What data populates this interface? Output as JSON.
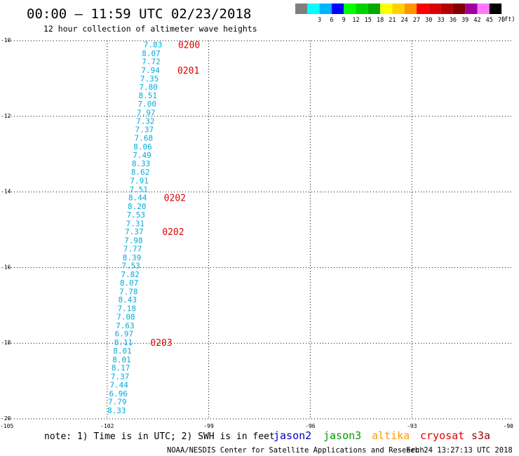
{
  "header": {
    "title": "00:00 – 11:59 UTC 02/23/2018",
    "subtitle": "12 hour collection of altimeter wave heights"
  },
  "scale": {
    "unit_label": "(ft)",
    "bins": [
      {
        "label": "",
        "color": "#7f7f7f"
      },
      {
        "label": "3",
        "color": "#00ffff"
      },
      {
        "label": "6",
        "color": "#00b4ff"
      },
      {
        "label": "9",
        "color": "#0000ff"
      },
      {
        "label": "12",
        "color": "#00ff00"
      },
      {
        "label": "15",
        "color": "#00d200"
      },
      {
        "label": "18",
        "color": "#00aa00"
      },
      {
        "label": "21",
        "color": "#ffff00"
      },
      {
        "label": "24",
        "color": "#ffd200"
      },
      {
        "label": "27",
        "color": "#ff9600"
      },
      {
        "label": "30",
        "color": "#ff0000"
      },
      {
        "label": "33",
        "color": "#dc0000"
      },
      {
        "label": "36",
        "color": "#b40000"
      },
      {
        "label": "39",
        "color": "#820000"
      },
      {
        "label": "42",
        "color": "#a000a0"
      },
      {
        "label": "45",
        "color": "#ff78ff"
      },
      {
        "label": "70",
        "color": "#000000"
      }
    ]
  },
  "footer": {
    "note": "note: 1) Time is in UTC; 2) SWH is in feet",
    "credit": "NOAA/NESDIS Center for Satellite Applications and Research",
    "timestamp": "Feb 24 13:27:13 UTC 2018",
    "satellites": [
      {
        "name": "jason2",
        "color": "#0000cc"
      },
      {
        "name": "jason3",
        "color": "#009900"
      },
      {
        "name": "altika",
        "color": "#ff9900"
      },
      {
        "name": "cryosat",
        "color": "#dd0000"
      },
      {
        "name": "s3a",
        "color": "#990000"
      }
    ]
  },
  "chart_data": {
    "type": "scatter",
    "title": "00:00 – 11:59 UTC 02/23/2018",
    "subtitle": "12 hour collection of altimeter wave heights",
    "xlim": [
      -105,
      -90
    ],
    "ylim": [
      -20,
      -10
    ],
    "xticks": [
      -105,
      -102,
      -99,
      -96,
      -93,
      -90
    ],
    "yticks": [
      -10,
      -12,
      -14,
      -16,
      -18,
      -20
    ],
    "grid": true,
    "value_color": "#00aadd",
    "time_color": "#dd0000",
    "points": [
      {
        "lon": -100.65,
        "lat": -10.1,
        "v": "7.83"
      },
      {
        "lon": -100.7,
        "lat": -10.33,
        "v": "8.07"
      },
      {
        "lon": -100.7,
        "lat": -10.55,
        "v": "7.72"
      },
      {
        "lon": -100.72,
        "lat": -10.78,
        "v": "7.94"
      },
      {
        "lon": -100.75,
        "lat": -11.0,
        "v": "7.35"
      },
      {
        "lon": -100.78,
        "lat": -11.22,
        "v": "7.80"
      },
      {
        "lon": -100.8,
        "lat": -11.45,
        "v": "8.51"
      },
      {
        "lon": -100.82,
        "lat": -11.67,
        "v": "7.00"
      },
      {
        "lon": -100.85,
        "lat": -11.9,
        "v": "7.97"
      },
      {
        "lon": -100.87,
        "lat": -12.12,
        "v": "7.32"
      },
      {
        "lon": -100.9,
        "lat": -12.35,
        "v": "7.37"
      },
      {
        "lon": -100.92,
        "lat": -12.57,
        "v": "7.68"
      },
      {
        "lon": -100.95,
        "lat": -12.8,
        "v": "8.06"
      },
      {
        "lon": -100.97,
        "lat": -13.02,
        "v": "7.49"
      },
      {
        "lon": -101.0,
        "lat": -13.25,
        "v": "8.33"
      },
      {
        "lon": -101.02,
        "lat": -13.47,
        "v": "8.62"
      },
      {
        "lon": -101.05,
        "lat": -13.7,
        "v": "7.91"
      },
      {
        "lon": -101.07,
        "lat": -13.93,
        "v": "7.51"
      },
      {
        "lon": -101.1,
        "lat": -14.15,
        "v": "8.44"
      },
      {
        "lon": -101.12,
        "lat": -14.38,
        "v": "8.20"
      },
      {
        "lon": -101.15,
        "lat": -14.6,
        "v": "7.53"
      },
      {
        "lon": -101.17,
        "lat": -14.83,
        "v": "7.31"
      },
      {
        "lon": -101.2,
        "lat": -15.05,
        "v": "7.37"
      },
      {
        "lon": -101.22,
        "lat": -15.28,
        "v": "7.98"
      },
      {
        "lon": -101.25,
        "lat": -15.5,
        "v": "7.77"
      },
      {
        "lon": -101.27,
        "lat": -15.73,
        "v": "8.39"
      },
      {
        "lon": -101.3,
        "lat": -15.95,
        "v": "7.53"
      },
      {
        "lon": -101.32,
        "lat": -16.18,
        "v": "7.82"
      },
      {
        "lon": -101.35,
        "lat": -16.4,
        "v": "8.07"
      },
      {
        "lon": -101.37,
        "lat": -16.63,
        "v": "7.78"
      },
      {
        "lon": -101.4,
        "lat": -16.85,
        "v": "8.43"
      },
      {
        "lon": -101.42,
        "lat": -17.08,
        "v": "7.18"
      },
      {
        "lon": -101.45,
        "lat": -17.3,
        "v": "7.08"
      },
      {
        "lon": -101.47,
        "lat": -17.53,
        "v": "7.63"
      },
      {
        "lon": -101.5,
        "lat": -17.75,
        "v": "6.97"
      },
      {
        "lon": -101.52,
        "lat": -17.98,
        "v": "8.11"
      },
      {
        "lon": -101.55,
        "lat": -18.2,
        "v": "8.01"
      },
      {
        "lon": -101.57,
        "lat": -18.43,
        "v": "8.01"
      },
      {
        "lon": -101.6,
        "lat": -18.65,
        "v": "8.17"
      },
      {
        "lon": -101.62,
        "lat": -18.88,
        "v": "7.37"
      },
      {
        "lon": -101.65,
        "lat": -19.1,
        "v": "7.44"
      },
      {
        "lon": -101.67,
        "lat": -19.33,
        "v": "6.96"
      },
      {
        "lon": -101.7,
        "lat": -19.55,
        "v": "7.79"
      },
      {
        "lon": -101.72,
        "lat": -19.78,
        "v": "8.33"
      }
    ],
    "time_labels": [
      {
        "lon": -99.58,
        "lat": -10.1,
        "t": "0200"
      },
      {
        "lon": -99.6,
        "lat": -10.78,
        "t": "0201"
      },
      {
        "lon": -100.0,
        "lat": -14.15,
        "t": "0202"
      },
      {
        "lon": -100.05,
        "lat": -15.05,
        "t": "0202"
      },
      {
        "lon": -100.4,
        "lat": -17.98,
        "t": "0203"
      }
    ]
  }
}
